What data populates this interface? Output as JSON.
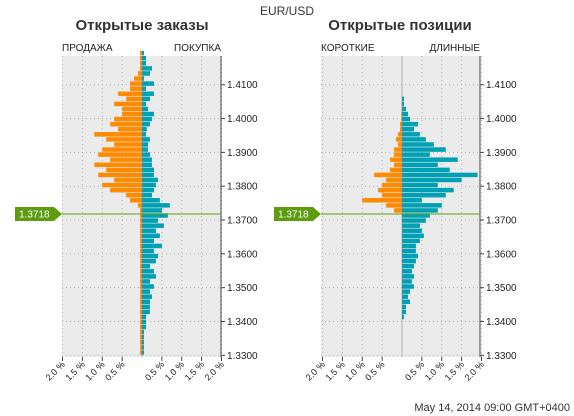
{
  "pair": "EUR/USD",
  "timestamp": "May 14, 2014 09:00 GMT+0400",
  "current_price": "1.3718",
  "colors": {
    "short": "#00a0b4",
    "long": "#ff8a00",
    "price_line": "#5d9c0f",
    "plot_bg": "#ebebeb",
    "grid": "#b5b5b5"
  },
  "chart_data": [
    {
      "type": "bar",
      "title": "Открытые заказы",
      "left_label": "ПРОДАЖА",
      "right_label": "ПОКУПКА",
      "x_ticks": [
        "2.0 %",
        "1.5 %",
        "1.0 %",
        "0.5 %",
        "0.5 %",
        "1.0 %",
        "1.5 %",
        "2.0 %"
      ],
      "y_ticks": [
        "1.4100",
        "1.4000",
        "1.3900",
        "1.3800",
        "1.3700",
        "1.3600",
        "1.3500",
        "1.3400",
        "1.3300"
      ],
      "ylim": [
        1.3295,
        1.4185
      ],
      "xlim_percent": [
        -2.0,
        2.0
      ],
      "price_level": 1.3718,
      "grid": true,
      "bin_start": 1.33,
      "bin_step": 0.0015,
      "series": [
        {
          "color": "#00a0b4",
          "values": [
            0.05,
            0.05,
            0.05,
            0.05,
            0.05,
            0.1,
            0.1,
            0.1,
            0.2,
            0.2,
            0.2,
            0.25,
            0.2,
            0.3,
            0.2,
            0.35,
            0.3,
            0.2,
            0.35,
            0.4,
            0.3,
            0.5,
            0.3,
            0.45,
            0.35,
            0.55,
            0.4,
            0.65,
            0.5,
            0.7,
            0.45,
            0.25,
            0.3,
            0.35,
            0.4,
            0.3,
            0.3,
            0.25,
            0.25,
            0.2,
            0.15,
            0.15,
            0.2,
            0.1,
            0.12,
            0.2,
            0.25,
            0.3,
            0.15,
            0.1,
            0.2,
            0.3,
            0.1,
            0.3,
            0.05,
            0.2,
            0.25,
            0.1,
            0.1,
            0.05
          ]
        },
        {
          "color": "#ff8a00",
          "values": [
            -0.05,
            -0.05,
            -0.05,
            -0.05,
            -0.05,
            -0.05,
            -0.05,
            -0.05,
            -0.05,
            -0.05,
            -0.05,
            -0.05,
            -0.05,
            -0.05,
            -0.05,
            -0.05,
            -0.05,
            -0.05,
            -0.05,
            -0.05,
            -0.05,
            -0.05,
            -0.05,
            -0.05,
            -0.05,
            -0.05,
            -0.05,
            -0.05,
            -0.05,
            -0.1,
            -0.3,
            -0.4,
            -0.8,
            -1.0,
            -0.7,
            -1.1,
            -0.9,
            -1.2,
            -0.8,
            -1.1,
            -1.0,
            -0.7,
            -0.9,
            -1.2,
            -0.6,
            -0.8,
            -0.7,
            -0.5,
            -0.5,
            -0.7,
            -0.4,
            -0.6,
            -0.3,
            -0.3,
            -0.2,
            -0.1,
            -0.05,
            -0.05,
            -0.05,
            -0.05
          ]
        }
      ]
    },
    {
      "type": "bar",
      "title": "Открытые позиции",
      "left_label": "КОРОТКИЕ",
      "right_label": "ДЛИННЫЕ",
      "x_ticks": [
        "2.0 %",
        "1.5 %",
        "1.0 %",
        "0.5 %",
        "0.5 %",
        "1.0 %",
        "1.5 %",
        "2.0 %"
      ],
      "y_ticks": [
        "1.4100",
        "1.4000",
        "1.3900",
        "1.3800",
        "1.3700",
        "1.3600",
        "1.3500",
        "1.3400",
        "1.3300"
      ],
      "ylim": [
        1.3295,
        1.4185
      ],
      "xlim_percent": [
        -2.0,
        2.0
      ],
      "price_level": 1.3718,
      "grid": true,
      "bin_start": 1.33,
      "bin_step": 0.0015,
      "series": [
        {
          "color": "#00a0b4",
          "values": [
            0,
            0,
            0,
            0,
            0,
            0,
            0,
            0.05,
            0.1,
            0.1,
            0.2,
            0.15,
            0.2,
            0.3,
            0.25,
            0.3,
            0.25,
            0.3,
            0.35,
            0.4,
            0.35,
            0.35,
            0.45,
            0.55,
            0.5,
            0.45,
            0.6,
            0.7,
            0.9,
            1.0,
            0.5,
            1.1,
            1.3,
            0.9,
            1.5,
            1.9,
            1.2,
            0.9,
            1.4,
            0.7,
            1.1,
            0.8,
            0.6,
            0.45,
            0.3,
            0.4,
            0.2,
            0.15,
            0.1,
            0.05,
            0.05,
            0,
            0,
            0,
            0,
            0,
            0,
            0,
            0,
            0
          ]
        },
        {
          "color": "#ff8a00",
          "values": [
            0,
            0,
            0,
            0,
            0,
            0,
            0,
            0,
            0,
            0,
            0,
            0,
            0,
            0,
            0,
            0,
            0,
            0,
            0,
            0,
            0,
            0,
            0,
            0,
            0,
            0,
            0,
            0,
            -0.2,
            -0.4,
            -1.0,
            -0.5,
            -0.6,
            -0.5,
            -0.4,
            -0.7,
            -0.3,
            -0.2,
            -0.3,
            -0.2,
            -0.2,
            -0.1,
            -0.15,
            -0.1,
            -0.05,
            -0.05,
            -0.02,
            -0.02,
            -0.01,
            -0.01,
            0,
            0,
            0,
            0,
            0,
            0,
            0,
            0,
            0,
            0
          ]
        }
      ]
    }
  ]
}
